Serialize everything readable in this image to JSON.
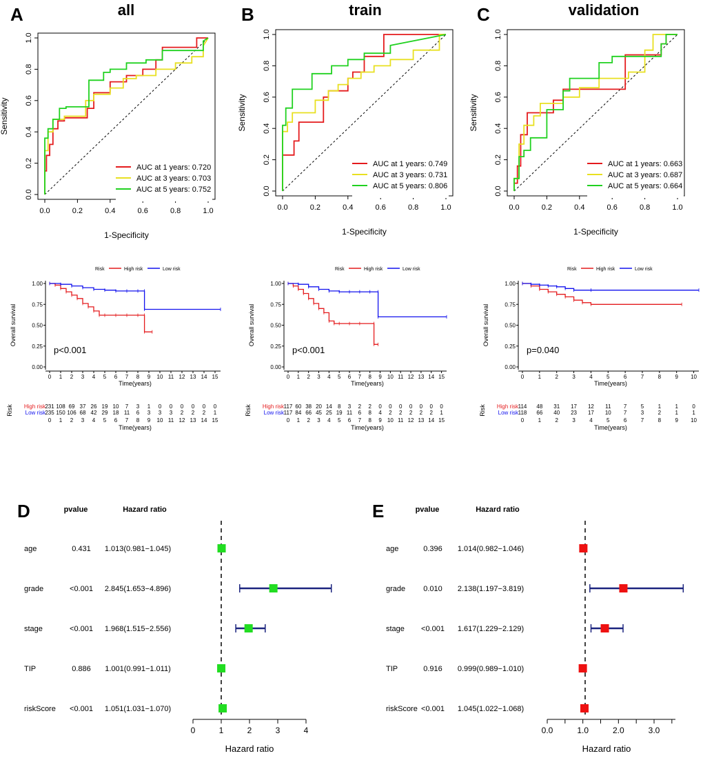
{
  "colors": {
    "red": "#e41a1c",
    "yellow": "#e8e020",
    "green": "#1fd11f",
    "blue": "#1010ee",
    "forest_green": "#22dd22",
    "forest_red": "#ee1111",
    "navy": "#1a237e"
  },
  "roc": {
    "xlabel": "1-Specificity",
    "ylabel": "Sensitivity",
    "ticks": [
      "0.0",
      "0.2",
      "0.4",
      "0.6",
      "0.8",
      "1.0"
    ],
    "panels": [
      {
        "letter": "A",
        "title": "all",
        "legend": [
          "AUC at 1 years: 0.720",
          "AUC at 3 years: 0.703",
          "AUC at 5 years: 0.752"
        ]
      },
      {
        "letter": "B",
        "title": "train",
        "legend": [
          "AUC at 1 years: 0.749",
          "AUC at 3 years: 0.731",
          "AUC at 5 years: 0.806"
        ]
      },
      {
        "letter": "C",
        "title": "validation",
        "legend": [
          "AUC at 1 years: 0.663",
          "AUC at 3 years: 0.687",
          "AUC at 5 years: 0.664"
        ]
      }
    ]
  },
  "km": {
    "legend_title": "Risk",
    "legend_high": "High risk",
    "legend_low": "Low risk",
    "ylabel": "Overall survival",
    "xlabel": "Time(years)",
    "yticks": [
      "0.00",
      "0.25",
      "0.50",
      "0.75",
      "1.00"
    ],
    "table_title": "Risk",
    "panels": [
      {
        "pvalue": "p<0.001",
        "xmax": 15,
        "high_counts": [
          "231",
          "108",
          "69",
          "37",
          "26",
          "19",
          "10",
          "7",
          "3",
          "1",
          "0",
          "0",
          "0",
          "0",
          "0",
          "0"
        ],
        "low_counts": [
          "235",
          "150",
          "106",
          "68",
          "42",
          "29",
          "18",
          "11",
          "6",
          "3",
          "3",
          "3",
          "2",
          "2",
          "2",
          "1"
        ]
      },
      {
        "pvalue": "p<0.001",
        "xmax": 15,
        "high_counts": [
          "117",
          "60",
          "38",
          "20",
          "14",
          "8",
          "3",
          "2",
          "2",
          "0",
          "0",
          "0",
          "0",
          "0",
          "0",
          "0"
        ],
        "low_counts": [
          "117",
          "84",
          "66",
          "45",
          "25",
          "19",
          "11",
          "6",
          "8",
          "4",
          "2",
          "2",
          "2",
          "2",
          "2",
          "1"
        ]
      },
      {
        "pvalue": "p=0.040",
        "xmax": 10,
        "high_counts": [
          "114",
          "48",
          "31",
          "17",
          "12",
          "11",
          "7",
          "5",
          "1",
          "1",
          "0"
        ],
        "low_counts": [
          "118",
          "66",
          "40",
          "23",
          "17",
          "10",
          "7",
          "3",
          "2",
          "1",
          "1"
        ]
      }
    ]
  },
  "forest": {
    "col_pvalue": "pvalue",
    "col_hr": "Hazard ratio",
    "xlabel": "Hazard ratio",
    "panels": [
      {
        "letter": "D",
        "xticks": [
          "0",
          "1",
          "2",
          "3",
          "4"
        ],
        "rows": [
          {
            "var": "age",
            "p": "0.431",
            "hr_text": "1.013(0.981−1.045)"
          },
          {
            "var": "grade",
            "p": "<0.001",
            "hr_text": "2.845(1.653−4.896)"
          },
          {
            "var": "stage",
            "p": "<0.001",
            "hr_text": "1.968(1.515−2.556)"
          },
          {
            "var": "TIP",
            "p": "0.886",
            "hr_text": "1.001(0.991−1.011)"
          },
          {
            "var": "riskScore",
            "p": "<0.001",
            "hr_text": "1.051(1.031−1.070)"
          }
        ]
      },
      {
        "letter": "E",
        "xticks": [
          "0.0",
          "1.0",
          "2.0",
          "3.0"
        ],
        "rows": [
          {
            "var": "age",
            "p": "0.396",
            "hr_text": "1.014(0.982−1.046)"
          },
          {
            "var": "grade",
            "p": "0.010",
            "hr_text": "2.138(1.197−3.819)"
          },
          {
            "var": "stage",
            "p": "<0.001",
            "hr_text": "1.617(1.229−2.129)"
          },
          {
            "var": "TIP",
            "p": "0.916",
            "hr_text": "0.999(0.989−1.010)"
          },
          {
            "var": "riskScore",
            "p": "<0.001",
            "hr_text": "1.045(1.022−1.068)"
          }
        ]
      }
    ]
  },
  "chart_data": [
    {
      "type": "line",
      "title": "all",
      "xlabel": "1-Specificity",
      "ylabel": "Sensitivity",
      "xlim": [
        0,
        1
      ],
      "ylim": [
        0,
        1
      ],
      "series": [
        {
          "name": "AUC at 1 years: 0.720",
          "color": "red",
          "x": [
            0,
            0,
            0.01,
            0.01,
            0.03,
            0.03,
            0.05,
            0.05,
            0.08,
            0.08,
            0.12,
            0.12,
            0.26,
            0.26,
            0.3,
            0.3,
            0.4,
            0.4,
            0.5,
            0.5,
            0.6,
            0.6,
            0.68,
            0.68,
            0.72,
            0.72,
            0.93,
            0.93,
            1
          ],
          "y": [
            0,
            0.15,
            0.15,
            0.25,
            0.25,
            0.32,
            0.32,
            0.42,
            0.42,
            0.47,
            0.47,
            0.49,
            0.49,
            0.55,
            0.55,
            0.65,
            0.65,
            0.72,
            0.72,
            0.76,
            0.76,
            0.8,
            0.8,
            0.86,
            0.86,
            0.94,
            0.94,
            1,
            1
          ]
        },
        {
          "name": "AUC at 3 years: 0.703",
          "color": "yellow",
          "x": [
            0,
            0,
            0.02,
            0.02,
            0.05,
            0.05,
            0.12,
            0.12,
            0.25,
            0.25,
            0.3,
            0.3,
            0.4,
            0.4,
            0.48,
            0.48,
            0.56,
            0.56,
            0.68,
            0.68,
            0.8,
            0.8,
            0.9,
            0.9,
            0.97,
            0.97,
            1
          ],
          "y": [
            0,
            0.28,
            0.28,
            0.4,
            0.4,
            0.48,
            0.48,
            0.5,
            0.5,
            0.6,
            0.6,
            0.64,
            0.64,
            0.68,
            0.68,
            0.74,
            0.74,
            0.76,
            0.76,
            0.8,
            0.8,
            0.84,
            0.84,
            0.88,
            0.88,
            0.95,
            1
          ]
        },
        {
          "name": "AUC at 5 years: 0.752",
          "color": "green",
          "x": [
            0,
            0,
            0.02,
            0.02,
            0.05,
            0.05,
            0.09,
            0.09,
            0.13,
            0.13,
            0.27,
            0.27,
            0.36,
            0.36,
            0.4,
            0.4,
            0.5,
            0.5,
            0.62,
            0.62,
            0.72,
            0.72,
            0.97,
            0.97,
            1
          ],
          "y": [
            0,
            0.36,
            0.36,
            0.42,
            0.42,
            0.48,
            0.48,
            0.55,
            0.55,
            0.56,
            0.56,
            0.73,
            0.73,
            0.78,
            0.78,
            0.8,
            0.8,
            0.84,
            0.84,
            0.86,
            0.86,
            0.92,
            0.92,
            0.98,
            1
          ]
        }
      ]
    },
    {
      "type": "line",
      "title": "train",
      "xlabel": "1-Specificity",
      "ylabel": "Sensitivity",
      "xlim": [
        0,
        1
      ],
      "ylim": [
        0,
        1
      ],
      "series": [
        {
          "name": "AUC at 1 years: 0.749",
          "color": "red",
          "x": [
            0,
            0,
            0.07,
            0.07,
            0.1,
            0.1,
            0.25,
            0.25,
            0.28,
            0.28,
            0.4,
            0.4,
            0.43,
            0.43,
            0.5,
            0.5,
            0.62,
            0.62,
            1
          ],
          "y": [
            0,
            0.23,
            0.23,
            0.32,
            0.32,
            0.44,
            0.44,
            0.6,
            0.6,
            0.64,
            0.64,
            0.72,
            0.72,
            0.76,
            0.76,
            0.86,
            0.86,
            1,
            1
          ]
        },
        {
          "name": "AUC at 3 years: 0.731",
          "color": "yellow",
          "x": [
            0,
            0,
            0.03,
            0.03,
            0.06,
            0.06,
            0.2,
            0.2,
            0.28,
            0.28,
            0.34,
            0.34,
            0.4,
            0.4,
            0.48,
            0.48,
            0.56,
            0.56,
            0.66,
            0.66,
            0.8,
            0.8,
            0.96,
            0.96,
            1
          ],
          "y": [
            0,
            0.38,
            0.38,
            0.44,
            0.44,
            0.5,
            0.5,
            0.58,
            0.58,
            0.64,
            0.64,
            0.68,
            0.68,
            0.72,
            0.72,
            0.76,
            0.76,
            0.8,
            0.8,
            0.84,
            0.84,
            0.9,
            0.9,
            1,
            1
          ]
        },
        {
          "name": "AUC at 5 years: 0.806",
          "color": "green",
          "x": [
            0,
            0,
            0.02,
            0.02,
            0.06,
            0.06,
            0.18,
            0.18,
            0.3,
            0.3,
            0.4,
            0.4,
            0.5,
            0.5,
            0.66,
            0.66,
            1
          ],
          "y": [
            0,
            0.42,
            0.42,
            0.53,
            0.53,
            0.65,
            0.65,
            0.75,
            0.75,
            0.8,
            0.8,
            0.84,
            0.84,
            0.88,
            0.88,
            0.93,
            1
          ]
        }
      ]
    },
    {
      "type": "line",
      "title": "validation",
      "xlabel": "1-Specificity",
      "ylabel": "Sensitivity",
      "xlim": [
        0,
        1
      ],
      "ylim": [
        0,
        1
      ],
      "series": [
        {
          "name": "AUC at 1 years: 0.663",
          "color": "red",
          "x": [
            0,
            0,
            0.02,
            0.02,
            0.04,
            0.04,
            0.08,
            0.08,
            0.24,
            0.24,
            0.3,
            0.3,
            0.68,
            0.68,
            0.9,
            0.9,
            0.93,
            0.93,
            1
          ],
          "y": [
            0,
            0.05,
            0.05,
            0.16,
            0.16,
            0.36,
            0.36,
            0.5,
            0.5,
            0.58,
            0.58,
            0.65,
            0.65,
            0.87,
            0.87,
            0.94,
            0.94,
            1,
            1
          ]
        },
        {
          "name": "AUC at 3 years: 0.687",
          "color": "yellow",
          "x": [
            0,
            0,
            0.03,
            0.03,
            0.06,
            0.06,
            0.12,
            0.12,
            0.16,
            0.16,
            0.3,
            0.3,
            0.4,
            0.4,
            0.52,
            0.52,
            0.7,
            0.7,
            0.8,
            0.8,
            0.85,
            0.85,
            1
          ],
          "y": [
            0,
            0.08,
            0.08,
            0.3,
            0.3,
            0.42,
            0.42,
            0.48,
            0.48,
            0.56,
            0.56,
            0.6,
            0.6,
            0.66,
            0.66,
            0.72,
            0.72,
            0.76,
            0.76,
            0.9,
            0.9,
            1,
            1
          ]
        },
        {
          "name": "AUC at 5 years: 0.664",
          "color": "green",
          "x": [
            0,
            0,
            0.03,
            0.03,
            0.06,
            0.06,
            0.1,
            0.1,
            0.2,
            0.2,
            0.3,
            0.3,
            0.34,
            0.34,
            0.52,
            0.52,
            0.6,
            0.6,
            0.9,
            0.9,
            0.93,
            0.93,
            1
          ],
          "y": [
            0,
            0.08,
            0.08,
            0.22,
            0.22,
            0.26,
            0.26,
            0.34,
            0.34,
            0.52,
            0.52,
            0.64,
            0.64,
            0.72,
            0.72,
            0.82,
            0.82,
            0.86,
            0.86,
            0.94,
            0.94,
            1,
            1
          ]
        }
      ]
    },
    {
      "type": "line",
      "title": "Overall survival (all)",
      "xlabel": "Time(years)",
      "ylabel": "Overall survival",
      "xlim": [
        0,
        15.5
      ],
      "ylim": [
        0,
        1
      ],
      "pvalue": "p<0.001",
      "series": [
        {
          "name": "High risk",
          "color": "red",
          "x": [
            0,
            0.5,
            1,
            1.5,
            2,
            2.5,
            3,
            3.5,
            4,
            4.5,
            5,
            6,
            7,
            8,
            8.6,
            8.6,
            9.3
          ],
          "y": [
            1,
            0.98,
            0.94,
            0.9,
            0.86,
            0.82,
            0.76,
            0.72,
            0.67,
            0.62,
            0.62,
            0.62,
            0.62,
            0.62,
            0.62,
            0.42,
            0.42
          ]
        },
        {
          "name": "Low risk",
          "color": "blue",
          "x": [
            0,
            1,
            2,
            3,
            4,
            5,
            6,
            7,
            8,
            8.6,
            8.6,
            15.5
          ],
          "y": [
            1,
            0.99,
            0.97,
            0.95,
            0.93,
            0.92,
            0.91,
            0.91,
            0.91,
            0.91,
            0.69,
            0.69
          ]
        }
      ]
    },
    {
      "type": "line",
      "title": "Overall survival (train)",
      "xlabel": "Time(years)",
      "ylabel": "Overall survival",
      "xlim": [
        0,
        15.5
      ],
      "ylim": [
        0,
        1
      ],
      "pvalue": "p<0.001",
      "series": [
        {
          "name": "High risk",
          "color": "red",
          "x": [
            0,
            0.5,
            1,
            1.5,
            2,
            2.5,
            3,
            3.5,
            4,
            4.5,
            5,
            6,
            7,
            8.4,
            8.4,
            8.8
          ],
          "y": [
            1,
            0.97,
            0.93,
            0.88,
            0.82,
            0.76,
            0.7,
            0.65,
            0.55,
            0.52,
            0.52,
            0.52,
            0.52,
            0.52,
            0.27,
            0.27
          ]
        },
        {
          "name": "Low risk",
          "color": "blue",
          "x": [
            0,
            1,
            2,
            3,
            4,
            5,
            6,
            7,
            8,
            8.8,
            8.8,
            15.5
          ],
          "y": [
            1,
            0.99,
            0.96,
            0.93,
            0.91,
            0.9,
            0.9,
            0.9,
            0.9,
            0.9,
            0.6,
            0.6
          ]
        }
      ]
    },
    {
      "type": "line",
      "title": "Overall survival (validation)",
      "xlabel": "Time(years)",
      "ylabel": "Overall survival",
      "xlim": [
        0,
        10.3
      ],
      "ylim": [
        0,
        1
      ],
      "pvalue": "p=0.040",
      "series": [
        {
          "name": "High risk",
          "color": "red",
          "x": [
            0,
            0.5,
            1,
            1.5,
            2,
            2.5,
            3,
            3.5,
            4,
            9.3
          ],
          "y": [
            1,
            0.97,
            0.93,
            0.9,
            0.87,
            0.84,
            0.8,
            0.77,
            0.75,
            0.75
          ]
        },
        {
          "name": "Low risk",
          "color": "blue",
          "x": [
            0,
            0.5,
            1,
            1.5,
            2,
            2.5,
            3,
            4,
            10.3
          ],
          "y": [
            1,
            0.99,
            0.98,
            0.97,
            0.96,
            0.94,
            0.92,
            0.92,
            0.92
          ]
        }
      ]
    },
    {
      "type": "forest",
      "title": "D",
      "xlabel": "Hazard ratio",
      "xlim": [
        0,
        4
      ],
      "series": [
        {
          "name": "Hazard ratio",
          "categories": [
            "age",
            "grade",
            "stage",
            "TIP",
            "riskScore"
          ],
          "hr": [
            1.013,
            2.845,
            1.968,
            1.001,
            1.051
          ],
          "lower": [
            0.981,
            1.653,
            1.515,
            0.991,
            1.031
          ],
          "upper": [
            1.045,
            4.896,
            2.556,
            1.011,
            1.07
          ]
        }
      ]
    },
    {
      "type": "forest",
      "title": "E",
      "xlabel": "Hazard ratio",
      "xlim": [
        0,
        3.6
      ],
      "series": [
        {
          "name": "Hazard ratio",
          "categories": [
            "age",
            "grade",
            "stage",
            "TIP",
            "riskScore"
          ],
          "hr": [
            1.014,
            2.138,
            1.617,
            0.999,
            1.045
          ],
          "lower": [
            0.982,
            1.197,
            1.229,
            0.989,
            1.022
          ],
          "upper": [
            1.046,
            3.819,
            2.129,
            1.01,
            1.068
          ]
        }
      ]
    }
  ]
}
